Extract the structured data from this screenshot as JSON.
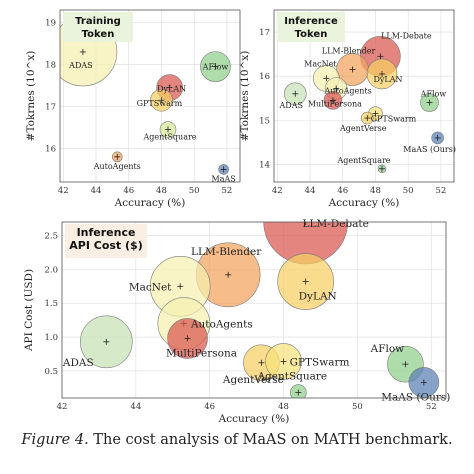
{
  "figure_caption": {
    "label": "Figure 4.",
    "text": " The cost analysis of MaAS on MATH benchmark."
  },
  "chart_data": [
    {
      "type": "scatter",
      "title": "Training\nToken",
      "xlabel": "Accuracy (%)",
      "ylabel": "#Tokrnes (10^x)",
      "xlim": [
        41.8,
        52.8
      ],
      "ylim": [
        15.2,
        19.3
      ],
      "xticks": [
        42,
        44,
        46,
        48,
        50,
        52
      ],
      "yticks": [
        16,
        17,
        18,
        19
      ],
      "grid": true,
      "points": [
        {
          "label": "ADAS",
          "x": 43.2,
          "y": 18.3,
          "size": 34,
          "color": "#f5f0b0"
        },
        {
          "label": "AFlow",
          "x": 51.3,
          "y": 17.95,
          "size": 15,
          "color": "#8fcf8a"
        },
        {
          "label": "DyLAN",
          "x": 48.5,
          "y": 17.45,
          "size": 13,
          "color": "#d9564f"
        },
        {
          "label": "GPTSwarm",
          "x": 48.0,
          "y": 17.15,
          "size": 11,
          "color": "#f6cf63"
        },
        {
          "label": "AgentSquare",
          "x": 48.4,
          "y": 16.45,
          "size": 8,
          "color": "#d6e89a"
        },
        {
          "label": "AutoAgents",
          "x": 45.3,
          "y": 15.8,
          "size": 5,
          "color": "#f2a25c"
        },
        {
          "label": "MaAS",
          "x": 51.8,
          "y": 15.5,
          "size": 5,
          "color": "#5a7fb4"
        }
      ]
    },
    {
      "type": "scatter",
      "title": "Inference\nToken",
      "xlabel": "Accuracy (%)",
      "ylabel": "#Tokrnes (10^x)",
      "xlim": [
        41.8,
        52.8
      ],
      "ylim": [
        13.6,
        17.5
      ],
      "xticks": [
        42,
        44,
        46,
        48,
        50,
        52
      ],
      "yticks": [
        14,
        15,
        16,
        17
      ],
      "grid": true,
      "points": [
        {
          "label": "LLM-Debate",
          "x": 48.3,
          "y": 16.45,
          "size": 20,
          "color": "#d9564f"
        },
        {
          "label": "LLM-Blender",
          "x": 46.6,
          "y": 16.15,
          "size": 16,
          "color": "#f2a25c"
        },
        {
          "label": "DyLAN",
          "x": 48.4,
          "y": 16.05,
          "size": 15,
          "color": "#f6cf63"
        },
        {
          "label": "MacNet",
          "x": 45.0,
          "y": 15.95,
          "size": 13,
          "color": "#f5f0b0"
        },
        {
          "label": "AutoAgents",
          "x": 45.6,
          "y": 15.72,
          "size": 11,
          "color": "#f5f0b0"
        },
        {
          "label": "MultiPersona",
          "x": 45.4,
          "y": 15.45,
          "size": 9,
          "color": "#d9564f"
        },
        {
          "label": "ADAS",
          "x": 43.1,
          "y": 15.6,
          "size": 11,
          "color": "#c6e2b6"
        },
        {
          "label": "AFlow",
          "x": 51.3,
          "y": 15.4,
          "size": 9,
          "color": "#8fcf8a"
        },
        {
          "label": "GPTSwarm",
          "x": 48.0,
          "y": 15.15,
          "size": 7,
          "color": "#f6e27a"
        },
        {
          "label": "AgentVerse",
          "x": 47.5,
          "y": 15.05,
          "size": 6,
          "color": "#f6cf63"
        },
        {
          "label": "MaAS (Ours)",
          "x": 51.8,
          "y": 14.6,
          "size": 6,
          "color": "#5a7fb4"
        },
        {
          "label": "AgentSquare",
          "x": 48.4,
          "y": 13.9,
          "size": 4,
          "color": "#8fcf8a"
        }
      ]
    },
    {
      "type": "scatter",
      "title": "Inference\nAPI Cost ($)",
      "xlabel": "Accuracy (%)",
      "ylabel": "API Cost (USD)",
      "xlim": [
        42,
        52.4
      ],
      "ylim": [
        0.1,
        2.7
      ],
      "xticks": [
        42,
        44,
        46,
        48,
        50,
        52
      ],
      "yticks": [
        0.5,
        1.0,
        1.5,
        2.0,
        2.5
      ],
      "grid": true,
      "points": [
        {
          "label": "LLM-Debate",
          "x": 48.6,
          "y": 2.7,
          "size": 42,
          "color": "#d9564f"
        },
        {
          "label": "LLM-Blender",
          "x": 46.5,
          "y": 1.92,
          "size": 32,
          "color": "#f2a25c"
        },
        {
          "label": "DyLAN",
          "x": 48.6,
          "y": 1.82,
          "size": 28,
          "color": "#f6cf63"
        },
        {
          "label": "MacNet",
          "x": 45.2,
          "y": 1.75,
          "size": 30,
          "color": "#f5f0b0"
        },
        {
          "label": "AutoAgents",
          "x": 45.3,
          "y": 1.2,
          "size": 26,
          "color": "#f5f0b0"
        },
        {
          "label": "MultiPersona",
          "x": 45.4,
          "y": 0.98,
          "size": 20,
          "color": "#d9564f"
        },
        {
          "label": "ADAS",
          "x": 43.2,
          "y": 0.93,
          "size": 26,
          "color": "#c6e2b6"
        },
        {
          "label": "AgentVerse",
          "x": 47.4,
          "y": 0.62,
          "size": 18,
          "color": "#f6cf63"
        },
        {
          "label": "GPTSwarm",
          "x": 48.0,
          "y": 0.64,
          "size": 18,
          "color": "#f6e27a"
        },
        {
          "label": "AgentSquare",
          "x": 48.4,
          "y": 0.18,
          "size": 8,
          "color": "#8fcf8a"
        },
        {
          "label": "AFlow",
          "x": 51.3,
          "y": 0.6,
          "size": 18,
          "color": "#8fcf8a"
        },
        {
          "label": "MaAS (Ours)",
          "x": 51.8,
          "y": 0.33,
          "size": 15,
          "color": "#5a7fb4"
        }
      ]
    }
  ],
  "title_bg_color": "#eaf3dc",
  "title_bg_color_3": "#fbeee2"
}
